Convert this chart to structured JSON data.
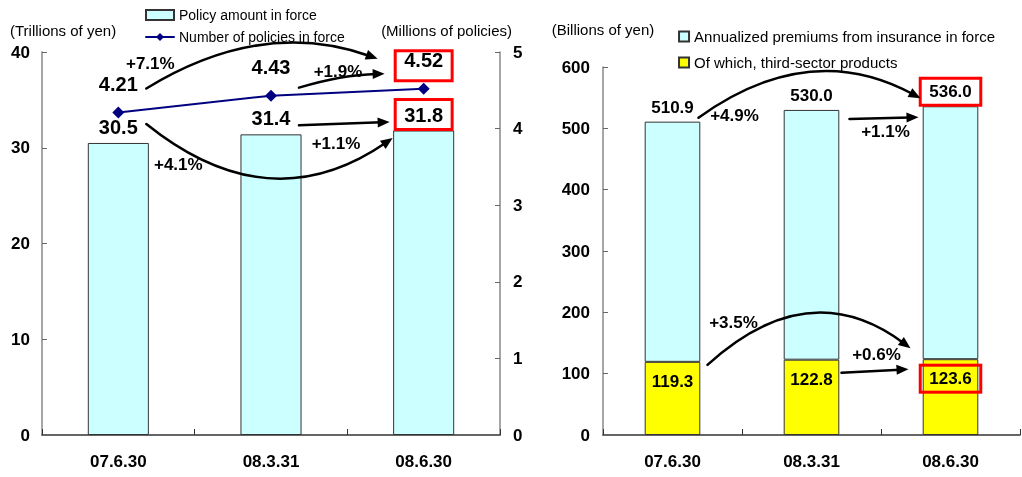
{
  "chart_data": [
    {
      "type": "bar",
      "categories": [
        "07.6.30",
        "08.3.31",
        "08.6.30"
      ],
      "series": [
        {
          "name": "Policy amount in force",
          "color": "#ccffff",
          "values": [
            30.5,
            31.4,
            31.8
          ]
        },
        {
          "name": "Number of policies in force",
          "type": "line",
          "axis": "y2",
          "color": "#000080",
          "marker": "diamond",
          "values": [
            4.21,
            4.43,
            4.52
          ]
        }
      ],
      "ylabel": "(Trillions of yen)",
      "y2label": "(Millions of policies)",
      "ylim": [
        0,
        40
      ],
      "yticks": [
        0,
        10,
        20,
        30,
        40
      ],
      "y2lim": [
        0,
        5
      ],
      "y2ticks": [
        0,
        1,
        2,
        3,
        4,
        5
      ],
      "data_labels": true,
      "legend": "top",
      "annotations": [
        "+7.1%",
        "+1.9%",
        "+1.1%",
        "+4.1%"
      ]
    },
    {
      "type": "bar",
      "categories": [
        "07.6.30",
        "08.3.31",
        "08.6.30"
      ],
      "stacked": true,
      "series": [
        {
          "name": "Of which, third-sector products",
          "color": "#ffff00",
          "values": [
            119.3,
            122.8,
            123.6
          ],
          "value_labels": [
            "119.3",
            "122.8",
            "123.6"
          ]
        },
        {
          "name": "Annualized premiums from insurance in force",
          "color": "#ccffff",
          "values": [
            391.6,
            407.2,
            412.4
          ]
        }
      ],
      "totals": [
        "510.9",
        "530.0",
        "536.0"
      ],
      "ylabel": "(Billions of yen)",
      "ylim": [
        0,
        600
      ],
      "yticks": [
        0,
        100,
        200,
        300,
        400,
        500,
        600
      ],
      "legend": "top right",
      "annotations": [
        "+4.9%",
        "+1.1%",
        "+3.5%",
        "+0.6%"
      ]
    }
  ]
}
